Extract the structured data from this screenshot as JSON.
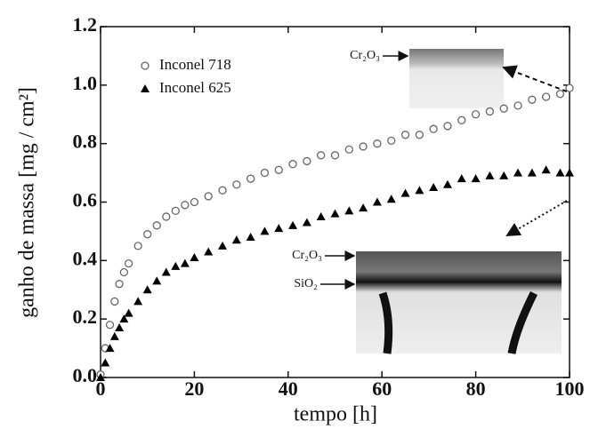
{
  "chart_data": {
    "type": "scatter",
    "xlabel": "tempo [h]",
    "ylabel": "ganho de massa [mg / cm²]",
    "x": [
      0,
      1,
      2,
      3,
      4,
      5,
      6,
      8,
      10,
      12,
      14,
      16,
      18,
      20,
      23,
      26,
      29,
      32,
      35,
      38,
      41,
      44,
      47,
      50,
      53,
      56,
      59,
      62,
      65,
      68,
      71,
      74,
      77,
      80,
      83,
      86,
      89,
      92,
      95,
      98,
      100
    ],
    "series": [
      {
        "name": "Inconel 718",
        "color": "#666666",
        "marker": "circle",
        "values": [
          0.01,
          0.1,
          0.18,
          0.26,
          0.32,
          0.36,
          0.39,
          0.45,
          0.49,
          0.52,
          0.55,
          0.57,
          0.59,
          0.6,
          0.62,
          0.64,
          0.66,
          0.68,
          0.7,
          0.71,
          0.73,
          0.74,
          0.76,
          0.76,
          0.78,
          0.79,
          0.8,
          0.81,
          0.83,
          0.83,
          0.85,
          0.86,
          0.88,
          0.9,
          0.91,
          0.92,
          0.93,
          0.95,
          0.96,
          0.97,
          0.99
        ]
      },
      {
        "name": "Inconel 625",
        "color": "#000000",
        "marker": "triangle",
        "values": [
          0,
          0.05,
          0.1,
          0.14,
          0.17,
          0.2,
          0.22,
          0.26,
          0.3,
          0.33,
          0.36,
          0.38,
          0.39,
          0.41,
          0.43,
          0.45,
          0.47,
          0.48,
          0.5,
          0.51,
          0.52,
          0.53,
          0.55,
          0.56,
          0.57,
          0.58,
          0.6,
          0.61,
          0.63,
          0.64,
          0.65,
          0.66,
          0.68,
          0.68,
          0.69,
          0.69,
          0.7,
          0.7,
          0.71,
          0.7,
          0.7
        ]
      }
    ],
    "xlim": [
      0,
      100
    ],
    "xticks": [
      0,
      20,
      40,
      60,
      80,
      100
    ],
    "ylim": [
      0,
      1.2
    ],
    "yticks": [
      {
        "value": 0,
        "label": "0.0"
      },
      0.2,
      0.4,
      0.6,
      0.8,
      {
        "value": 1,
        "label": "1.0"
      },
      1.2
    ],
    "legend": "upper left",
    "annotations": [
      "Cr₂O₃",
      "Cr₂O₃",
      "SiO₂"
    ]
  }
}
